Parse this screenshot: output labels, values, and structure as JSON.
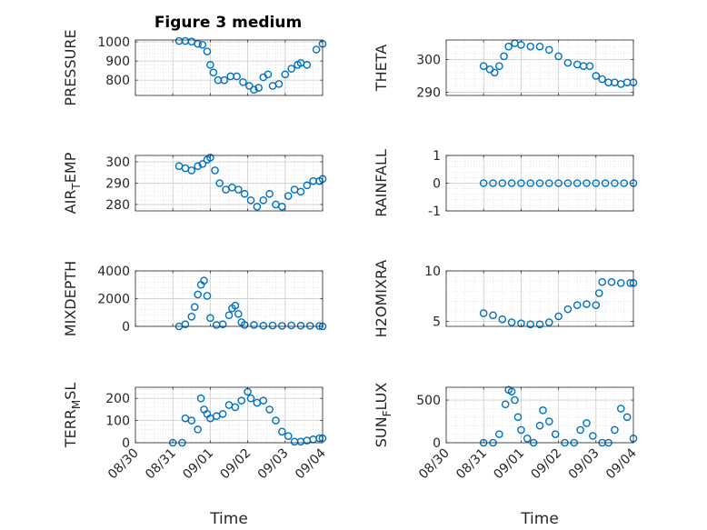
{
  "figure": {
    "title": "Figure 3 medium"
  },
  "chart_data": [
    {
      "type": "scatter",
      "title": "Figure 3 medium",
      "ylabel": "PRESSURE",
      "ylabel_sub": "",
      "ylabel_tail": "",
      "xlabel": "",
      "xlim": [
        "2017-08-30",
        "2017-09-04"
      ],
      "ylim": [
        720,
        1010
      ],
      "yticks": [
        800,
        900,
        1000
      ],
      "xticklabels_visible": false,
      "x_tick_labels": [
        "08/30",
        "08/31",
        "09/01",
        "09/02",
        "09/03",
        "09/04"
      ],
      "grid": "major+minor",
      "series": [
        {
          "color": "#0072BD",
          "marker": "o",
          "x": [
            "2017-08-31T04:00",
            "2017-08-31T08:00",
            "2017-08-31T12:00",
            "2017-08-31T16:00",
            "2017-08-31T19:00",
            "2017-08-31T22:00",
            "2017-09-01T00:00",
            "2017-09-01T02:00",
            "2017-09-01T05:00",
            "2017-09-01T09:00",
            "2017-09-01T13:00",
            "2017-09-01T17:00",
            "2017-09-01T21:00",
            "2017-09-02T01:00",
            "2017-09-02T04:00",
            "2017-09-02T07:00",
            "2017-09-02T10:00",
            "2017-09-02T13:00",
            "2017-09-02T16:00",
            "2017-09-02T20:00",
            "2017-09-03T00:00",
            "2017-09-03T04:00",
            "2017-09-03T08:00",
            "2017-09-03T10:00",
            "2017-09-03T14:00",
            "2017-09-03T20:00",
            "2017-09-04T00:00"
          ],
          "y": [
            1005,
            1005,
            1002,
            990,
            985,
            950,
            880,
            840,
            800,
            800,
            820,
            820,
            790,
            770,
            750,
            760,
            815,
            830,
            770,
            780,
            830,
            860,
            880,
            890,
            880,
            960,
            990
          ]
        }
      ]
    },
    {
      "type": "scatter",
      "ylabel": "THETA",
      "ylabel_sub": "",
      "ylabel_tail": "",
      "xlabel": "",
      "xlim": [
        "2017-08-30",
        "2017-09-04"
      ],
      "ylim": [
        289,
        306
      ],
      "yticks": [
        290,
        300
      ],
      "xticklabels_visible": false,
      "x_tick_labels": [
        "08/30",
        "08/31",
        "09/01",
        "09/02",
        "09/03",
        "09/04"
      ],
      "grid": "major+minor",
      "series": [
        {
          "color": "#0072BD",
          "marker": "o",
          "x": [
            "2017-08-31T00:00",
            "2017-08-31T04:00",
            "2017-08-31T07:00",
            "2017-08-31T10:00",
            "2017-08-31T13:00",
            "2017-08-31T16:00",
            "2017-08-31T20:00",
            "2017-09-01T00:00",
            "2017-09-01T06:00",
            "2017-09-01T12:00",
            "2017-09-01T18:00",
            "2017-09-02T00:00",
            "2017-09-02T06:00",
            "2017-09-02T12:00",
            "2017-09-02T16:00",
            "2017-09-02T20:00",
            "2017-09-03T00:00",
            "2017-09-03T04:00",
            "2017-09-03T08:00",
            "2017-09-03T12:00",
            "2017-09-03T16:00",
            "2017-09-03T20:00",
            "2017-09-04T00:00"
          ],
          "y": [
            298,
            297,
            296,
            298,
            301,
            304,
            305,
            304.5,
            304,
            304,
            303,
            301,
            299,
            298.5,
            298,
            298,
            295,
            294,
            293,
            293,
            292.5,
            293,
            293
          ]
        }
      ]
    },
    {
      "type": "scatter",
      "ylabel": "AIR",
      "ylabel_sub": "T",
      "ylabel_tail": "EMP",
      "xlabel": "",
      "xlim": [
        "2017-08-30",
        "2017-09-04"
      ],
      "ylim": [
        277,
        303
      ],
      "yticks": [
        280,
        290,
        300
      ],
      "xticklabels_visible": false,
      "x_tick_labels": [
        "08/30",
        "08/31",
        "09/01",
        "09/02",
        "09/03",
        "09/04"
      ],
      "grid": "major+minor",
      "series": [
        {
          "color": "#0072BD",
          "marker": "o",
          "x": [
            "2017-08-31T04:00",
            "2017-08-31T08:00",
            "2017-08-31T12:00",
            "2017-08-31T16:00",
            "2017-08-31T19:00",
            "2017-08-31T22:00",
            "2017-09-01T00:00",
            "2017-09-01T03:00",
            "2017-09-01T06:00",
            "2017-09-01T10:00",
            "2017-09-01T14:00",
            "2017-09-01T18:00",
            "2017-09-01T22:00",
            "2017-09-02T02:00",
            "2017-09-02T06:00",
            "2017-09-02T10:00",
            "2017-09-02T14:00",
            "2017-09-02T18:00",
            "2017-09-02T22:00",
            "2017-09-03T02:00",
            "2017-09-03T06:00",
            "2017-09-03T10:00",
            "2017-09-03T14:00",
            "2017-09-03T18:00",
            "2017-09-03T22:00",
            "2017-09-04T00:00"
          ],
          "y": [
            298,
            297,
            296,
            298,
            299,
            301,
            302,
            296,
            290,
            287,
            288,
            287,
            285,
            282,
            279,
            282,
            285,
            280,
            279,
            284,
            287,
            286,
            289,
            291,
            291,
            292
          ]
        }
      ]
    },
    {
      "type": "scatter",
      "ylabel": "RAINFALL",
      "ylabel_sub": "",
      "ylabel_tail": "",
      "xlabel": "",
      "xlim": [
        "2017-08-30",
        "2017-09-04"
      ],
      "ylim": [
        -1,
        1
      ],
      "yticks": [
        -1,
        0,
        1
      ],
      "xticklabels_visible": false,
      "x_tick_labels": [
        "08/30",
        "08/31",
        "09/01",
        "09/02",
        "09/03",
        "09/04"
      ],
      "grid": "major+minor",
      "series": [
        {
          "color": "#0072BD",
          "marker": "o",
          "x": [
            "2017-08-31T00:00",
            "2017-08-31T06:00",
            "2017-08-31T12:00",
            "2017-08-31T18:00",
            "2017-09-01T00:00",
            "2017-09-01T06:00",
            "2017-09-01T12:00",
            "2017-09-01T18:00",
            "2017-09-02T00:00",
            "2017-09-02T06:00",
            "2017-09-02T12:00",
            "2017-09-02T18:00",
            "2017-09-03T00:00",
            "2017-09-03T06:00",
            "2017-09-03T12:00",
            "2017-09-03T18:00",
            "2017-09-04T00:00"
          ],
          "y": [
            0,
            0,
            0,
            0,
            0,
            0,
            0,
            0,
            0,
            0,
            0,
            0,
            0,
            0,
            0,
            0,
            0
          ]
        }
      ]
    },
    {
      "type": "scatter",
      "ylabel": "MIXDEPTH",
      "ylabel_sub": "",
      "ylabel_tail": "",
      "xlabel": "",
      "xlim": [
        "2017-08-30",
        "2017-09-04"
      ],
      "ylim": [
        0,
        4000
      ],
      "yticks": [
        0,
        2000,
        4000
      ],
      "xticklabels_visible": false,
      "x_tick_labels": [
        "08/30",
        "08/31",
        "09/01",
        "09/02",
        "09/03",
        "09/04"
      ],
      "grid": "major+minor",
      "series": [
        {
          "color": "#0072BD",
          "marker": "o",
          "x": [
            "2017-08-31T04:00",
            "2017-08-31T08:00",
            "2017-08-31T12:00",
            "2017-08-31T14:00",
            "2017-08-31T16:00",
            "2017-08-31T18:00",
            "2017-08-31T20:00",
            "2017-08-31T22:00",
            "2017-09-01T00:00",
            "2017-09-01T04:00",
            "2017-09-01T08:00",
            "2017-09-01T12:00",
            "2017-09-01T14:00",
            "2017-09-01T16:00",
            "2017-09-01T18:00",
            "2017-09-01T20:00",
            "2017-09-01T22:00",
            "2017-09-02T04:00",
            "2017-09-02T10:00",
            "2017-09-02T16:00",
            "2017-09-02T22:00",
            "2017-09-03T04:00",
            "2017-09-03T10:00",
            "2017-09-03T16:00",
            "2017-09-03T22:00",
            "2017-09-04T00:00"
          ],
          "y": [
            0,
            150,
            700,
            1400,
            2300,
            3000,
            3300,
            2200,
            600,
            100,
            150,
            800,
            1300,
            1500,
            900,
            300,
            100,
            100,
            50,
            60,
            40,
            70,
            50,
            40,
            30,
            0
          ]
        }
      ]
    },
    {
      "type": "scatter",
      "ylabel": "H2OMIXRA",
      "ylabel_sub": "",
      "ylabel_tail": "",
      "xlabel": "",
      "xlim": [
        "2017-08-30",
        "2017-09-04"
      ],
      "ylim": [
        4.5,
        10
      ],
      "yticks": [
        5,
        10
      ],
      "xticklabels_visible": false,
      "x_tick_labels": [
        "08/30",
        "08/31",
        "09/01",
        "09/02",
        "09/03",
        "09/04"
      ],
      "grid": "major+minor",
      "series": [
        {
          "color": "#0072BD",
          "marker": "o",
          "x": [
            "2017-08-31T00:00",
            "2017-08-31T06:00",
            "2017-08-31T12:00",
            "2017-08-31T18:00",
            "2017-09-01T00:00",
            "2017-09-01T06:00",
            "2017-09-01T12:00",
            "2017-09-01T18:00",
            "2017-09-02T00:00",
            "2017-09-02T06:00",
            "2017-09-02T12:00",
            "2017-09-02T18:00",
            "2017-09-03T00:00",
            "2017-09-03T02:00",
            "2017-09-03T04:00",
            "2017-09-03T10:00",
            "2017-09-03T16:00",
            "2017-09-03T22:00",
            "2017-09-04T00:00"
          ],
          "y": [
            5.8,
            5.6,
            5.2,
            4.9,
            4.8,
            4.7,
            4.7,
            4.9,
            5.5,
            6.2,
            6.6,
            6.7,
            6.6,
            7.8,
            8.9,
            8.9,
            8.8,
            8.8,
            8.8
          ]
        }
      ]
    },
    {
      "type": "scatter",
      "ylabel": "TERR",
      "ylabel_sub": "M",
      "ylabel_tail": "SL",
      "xlabel": "Time",
      "xlim": [
        "2017-08-30",
        "2017-09-04"
      ],
      "ylim": [
        0,
        250
      ],
      "yticks": [
        0,
        100,
        200
      ],
      "xticklabels_visible": true,
      "x_tick_labels": [
        "08/30",
        "08/31",
        "09/01",
        "09/02",
        "09/03",
        "09/04"
      ],
      "grid": "major+minor",
      "series": [
        {
          "color": "#0072BD",
          "marker": "o",
          "x": [
            "2017-08-31T00:00",
            "2017-08-31T06:00",
            "2017-08-31T08:00",
            "2017-08-31T12:00",
            "2017-08-31T16:00",
            "2017-08-31T18:00",
            "2017-08-31T20:00",
            "2017-08-31T22:00",
            "2017-09-01T00:00",
            "2017-09-01T04:00",
            "2017-09-01T08:00",
            "2017-09-01T12:00",
            "2017-09-01T16:00",
            "2017-09-01T20:00",
            "2017-09-02T00:00",
            "2017-09-02T02:00",
            "2017-09-02T06:00",
            "2017-09-02T10:00",
            "2017-09-02T14:00",
            "2017-09-02T18:00",
            "2017-09-02T22:00",
            "2017-09-03T02:00",
            "2017-09-03T06:00",
            "2017-09-03T10:00",
            "2017-09-03T14:00",
            "2017-09-03T18:00",
            "2017-09-03T22:00",
            "2017-09-04T00:00"
          ],
          "y": [
            0,
            0,
            110,
            100,
            60,
            200,
            150,
            130,
            110,
            120,
            130,
            170,
            160,
            190,
            230,
            200,
            180,
            190,
            150,
            100,
            50,
            30,
            5,
            5,
            10,
            15,
            20,
            20
          ]
        }
      ]
    },
    {
      "type": "scatter",
      "ylabel": "SUN",
      "ylabel_sub": "F",
      "ylabel_tail": "LUX",
      "xlabel": "Time",
      "xlim": [
        "2017-08-30",
        "2017-09-04"
      ],
      "ylim": [
        0,
        650
      ],
      "yticks": [
        0,
        500
      ],
      "xticklabels_visible": true,
      "x_tick_labels": [
        "08/30",
        "08/31",
        "09/01",
        "09/02",
        "09/03",
        "09/04"
      ],
      "grid": "major+minor",
      "series": [
        {
          "color": "#0072BD",
          "marker": "o",
          "x": [
            "2017-08-31T00:00",
            "2017-08-31T06:00",
            "2017-08-31T10:00",
            "2017-08-31T14:00",
            "2017-08-31T16:00",
            "2017-08-31T18:00",
            "2017-08-31T20:00",
            "2017-08-31T22:00",
            "2017-09-01T00:00",
            "2017-09-01T04:00",
            "2017-09-01T08:00",
            "2017-09-01T12:00",
            "2017-09-01T14:00",
            "2017-09-01T18:00",
            "2017-09-01T22:00",
            "2017-09-02T04:00",
            "2017-09-02T10:00",
            "2017-09-02T14:00",
            "2017-09-02T18:00",
            "2017-09-02T22:00",
            "2017-09-03T04:00",
            "2017-09-03T08:00",
            "2017-09-03T12:00",
            "2017-09-03T16:00",
            "2017-09-03T20:00",
            "2017-09-04T00:00"
          ],
          "y": [
            0,
            0,
            100,
            450,
            620,
            600,
            500,
            300,
            150,
            50,
            0,
            200,
            380,
            250,
            100,
            0,
            0,
            150,
            230,
            80,
            0,
            0,
            150,
            400,
            300,
            50
          ]
        }
      ]
    }
  ]
}
